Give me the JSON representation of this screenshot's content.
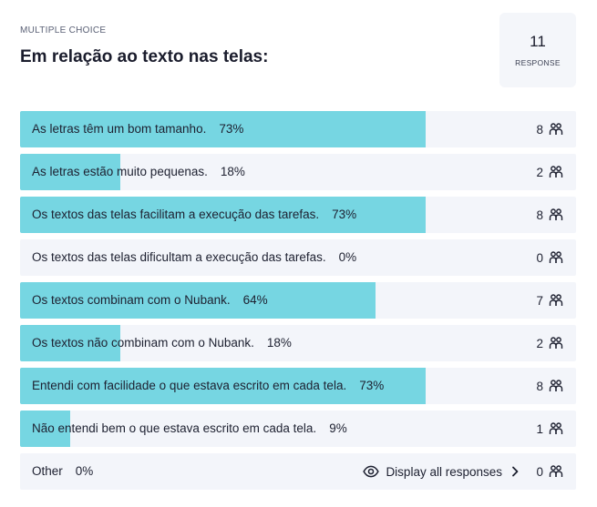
{
  "header": {
    "kicker": "MULTIPLE CHOICE",
    "title": "Em relação ao texto nas telas:",
    "response_count": "11",
    "response_label": "RESPONSE"
  },
  "options": [
    {
      "label": "As letras têm um bom tamanho.",
      "pct": "73%",
      "fraction": 0.73,
      "count": "8"
    },
    {
      "label": "As letras estão muito pequenas.",
      "pct": "18%",
      "fraction": 0.18,
      "count": "2"
    },
    {
      "label": "Os textos das telas facilitam a execução das tarefas.",
      "pct": "73%",
      "fraction": 0.73,
      "count": "8"
    },
    {
      "label": "Os textos das telas dificultam a execução das tarefas.",
      "pct": "0%",
      "fraction": 0.0,
      "count": "0"
    },
    {
      "label": "Os textos combinam com o Nubank.",
      "pct": "64%",
      "fraction": 0.64,
      "count": "7"
    },
    {
      "label": "Os textos não combinam com o Nubank.",
      "pct": "18%",
      "fraction": 0.18,
      "count": "2"
    },
    {
      "label": "Entendi com facilidade o que estava escrito em cada tela.",
      "pct": "73%",
      "fraction": 0.73,
      "count": "8"
    },
    {
      "label": "Não entendi bem o que estava escrito em cada tela.",
      "pct": "9%",
      "fraction": 0.09,
      "count": "1"
    }
  ],
  "other": {
    "label": "Other",
    "pct": "0%",
    "count": "0",
    "display_all_label": "Display all responses"
  },
  "colors": {
    "bar_fill": "#76d6e2",
    "row_background": "#f3f5fa"
  },
  "icons": {
    "responder": "people-icon",
    "view": "eye-icon",
    "more": "chevron-right-icon"
  }
}
